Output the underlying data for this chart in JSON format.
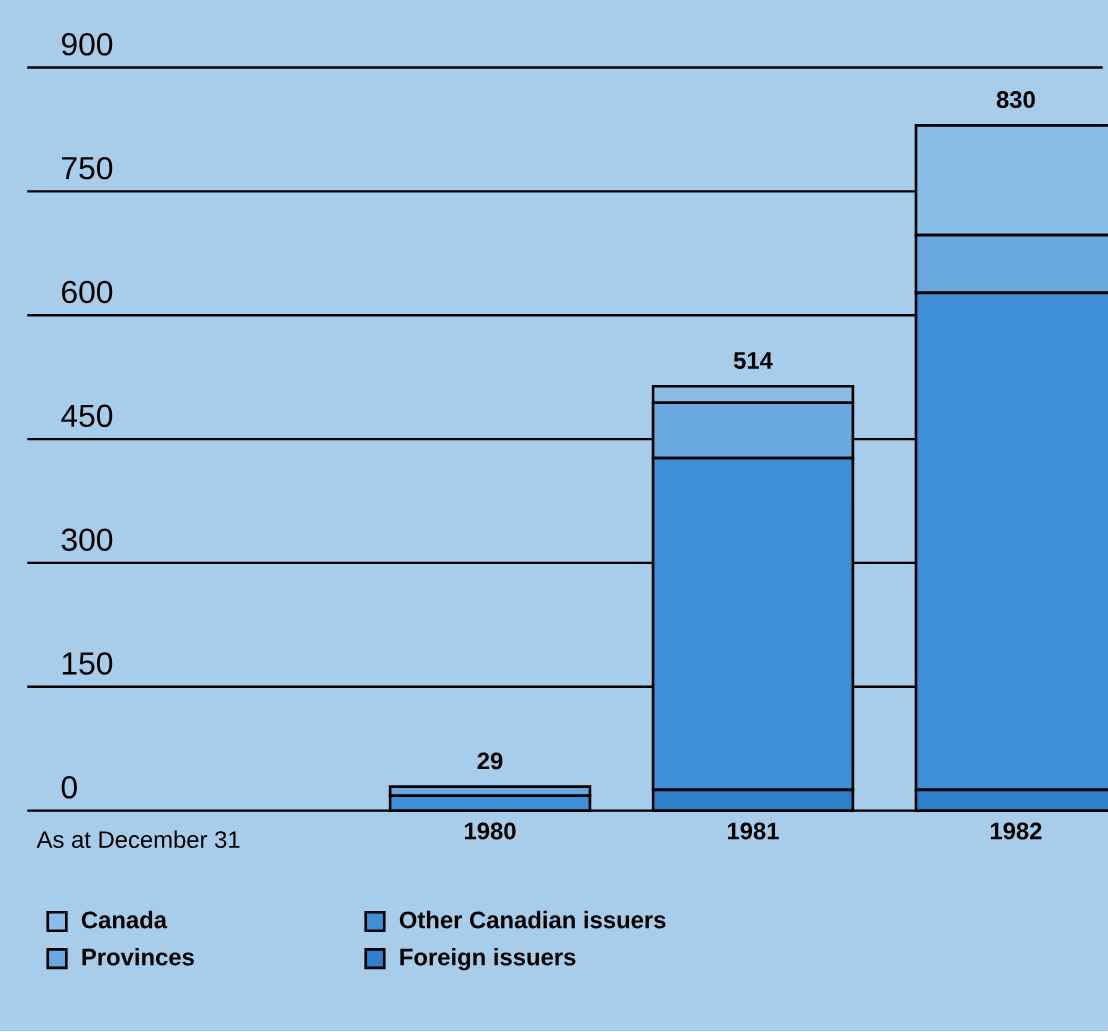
{
  "chart_data": {
    "type": "bar",
    "stacked": true,
    "xlabel": "As at December 31",
    "categories": [
      "1980",
      "1981",
      "1982"
    ],
    "series": [
      {
        "name": "Foreign issuers",
        "color": "#2f7fcc",
        "values": [
          0,
          25,
          25
        ]
      },
      {
        "name": "Other Canadian issuers",
        "color": "#3f8fd6",
        "values": [
          18,
          402,
          602
        ]
      },
      {
        "name": "Provinces",
        "color": "#6aa9df",
        "values": [
          11,
          67,
          70
        ]
      },
      {
        "name": "Canada",
        "color": "#8abde8",
        "values": [
          0,
          20,
          133
        ]
      }
    ],
    "totals": [
      "29",
      "514",
      "830"
    ],
    "ylim": [
      0,
      900
    ],
    "yticks": [
      0,
      150,
      300,
      450,
      600,
      750,
      900
    ],
    "grid": "y",
    "legend": "bottom"
  }
}
